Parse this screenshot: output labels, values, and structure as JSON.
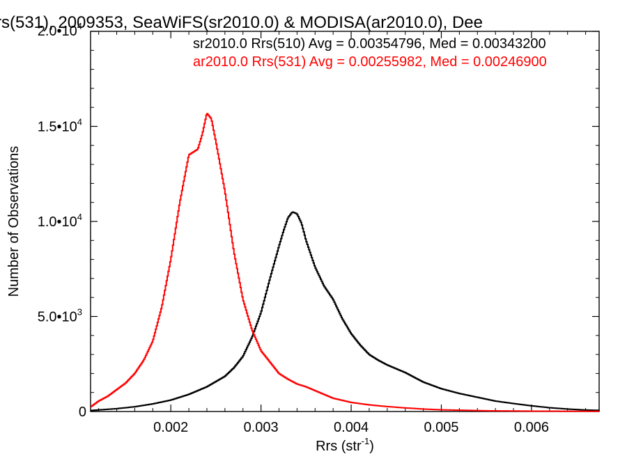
{
  "chart_data": {
    "type": "line",
    "title": "rs(531), 2009353, SeaWiFS(sr2010.0) & MODISA(ar2010.0), Dee",
    "xlabel": "Rrs (str",
    "xlabel_sup": "-1",
    "xlabel_end": ")",
    "ylabel": "Number of Observations",
    "xlim": [
      0.00111,
      0.00675
    ],
    "ylim": [
      0,
      20000
    ],
    "grid": false,
    "legend_placement": "top-right",
    "xticks": [
      {
        "value": 0.002,
        "label": "0.002"
      },
      {
        "value": 0.003,
        "label": "0.003"
      },
      {
        "value": 0.004,
        "label": "0.004"
      },
      {
        "value": 0.005,
        "label": "0.005"
      },
      {
        "value": 0.006,
        "label": "0.006"
      }
    ],
    "yticks": [
      {
        "value": 0,
        "base": "0",
        "exp": ""
      },
      {
        "value": 5000,
        "base": "5.0•10",
        "exp": "3"
      },
      {
        "value": 10000,
        "base": "1.0•10",
        "exp": "4"
      },
      {
        "value": 15000,
        "base": "1.5•10",
        "exp": "4"
      },
      {
        "value": 20000,
        "base": "2.0•10",
        "exp": "4"
      }
    ],
    "series": [
      {
        "name": "sr2010.0 Rrs(510) Avg = 0.00354796, Med = 0.00343200",
        "color": "#000000",
        "x": [
          0.0011,
          0.0014,
          0.0016,
          0.0018,
          0.002,
          0.0022,
          0.0024,
          0.0026,
          0.0027,
          0.0028,
          0.0029,
          0.003,
          0.0031,
          0.0032,
          0.00325,
          0.0033,
          0.00335,
          0.0034,
          0.00345,
          0.0035,
          0.0036,
          0.0037,
          0.0038,
          0.0039,
          0.004,
          0.0041,
          0.0042,
          0.0043,
          0.0044,
          0.0045,
          0.0046,
          0.0047,
          0.0048,
          0.005,
          0.0052,
          0.0054,
          0.0056,
          0.0058,
          0.006,
          0.0062,
          0.0064,
          0.0066,
          0.00675
        ],
        "y": [
          50,
          150,
          250,
          400,
          600,
          900,
          1300,
          1850,
          2300,
          2900,
          3900,
          5200,
          7000,
          8700,
          9500,
          10200,
          10500,
          10400,
          9900,
          9000,
          7600,
          6600,
          5900,
          4900,
          4100,
          3500,
          3000,
          2700,
          2450,
          2250,
          2050,
          1800,
          1550,
          1200,
          950,
          750,
          550,
          420,
          300,
          200,
          130,
          80,
          60
        ]
      },
      {
        "name": "ar2010.0 Rrs(531) Avg = 0.00255982, Med = 0.00246900",
        "color": "#ff0000",
        "x": [
          0.0011,
          0.0012,
          0.0013,
          0.0014,
          0.0015,
          0.0016,
          0.0017,
          0.0018,
          0.0019,
          0.002,
          0.0021,
          0.0022,
          0.0023,
          0.00235,
          0.0024,
          0.00245,
          0.0025,
          0.0026,
          0.0027,
          0.0028,
          0.0029,
          0.003,
          0.0031,
          0.0032,
          0.0033,
          0.0034,
          0.0035,
          0.0036,
          0.0037,
          0.0038,
          0.004,
          0.0042,
          0.0044,
          0.0046,
          0.0048,
          0.005,
          0.0055,
          0.006,
          0.00675
        ],
        "y": [
          200,
          550,
          800,
          1150,
          1500,
          2000,
          2700,
          3700,
          5500,
          8000,
          11000,
          13500,
          13800,
          14600,
          15700,
          15400,
          14200,
          11600,
          8400,
          5900,
          4300,
          3200,
          2600,
          2000,
          1700,
          1450,
          1300,
          1100,
          900,
          700,
          480,
          350,
          260,
          190,
          130,
          90,
          40,
          20,
          10
        ]
      }
    ]
  }
}
